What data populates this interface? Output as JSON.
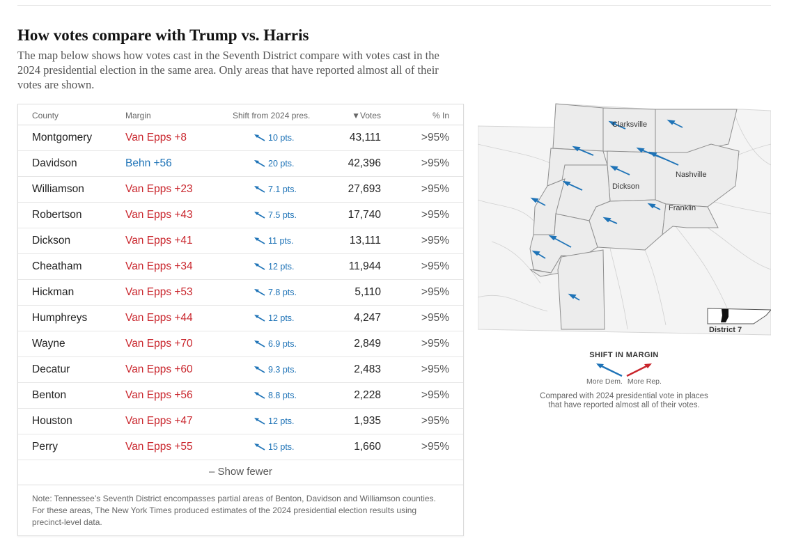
{
  "heading": "How votes compare with Trump vs. Harris",
  "intro": "The map below shows how votes cast in the Seventh District compare with votes cast in the 2024 presidential election in the same area. Only areas that have reported almost all of their votes are shown.",
  "table": {
    "headers": {
      "county": "County",
      "margin": "Margin",
      "shift": "Shift from 2024 pres.",
      "votes": "▼Votes",
      "pct_in": "% In"
    },
    "rows": [
      {
        "county": "Montgomery",
        "margin": "Van Epps +8",
        "party": "rep",
        "shift": "10 pts.",
        "votes": "43,111",
        "pct_in": ">95%"
      },
      {
        "county": "Davidson",
        "margin": "Behn +56",
        "party": "dem",
        "shift": "20 pts.",
        "votes": "42,396",
        "pct_in": ">95%"
      },
      {
        "county": "Williamson",
        "margin": "Van Epps +23",
        "party": "rep",
        "shift": "7.1 pts.",
        "votes": "27,693",
        "pct_in": ">95%"
      },
      {
        "county": "Robertson",
        "margin": "Van Epps +43",
        "party": "rep",
        "shift": "7.5 pts.",
        "votes": "17,740",
        "pct_in": ">95%"
      },
      {
        "county": "Dickson",
        "margin": "Van Epps +41",
        "party": "rep",
        "shift": "11 pts.",
        "votes": "13,111",
        "pct_in": ">95%"
      },
      {
        "county": "Cheatham",
        "margin": "Van Epps +34",
        "party": "rep",
        "shift": "12 pts.",
        "votes": "11,944",
        "pct_in": ">95%"
      },
      {
        "county": "Hickman",
        "margin": "Van Epps +53",
        "party": "rep",
        "shift": "7.8 pts.",
        "votes": "5,110",
        "pct_in": ">95%"
      },
      {
        "county": "Humphreys",
        "margin": "Van Epps +44",
        "party": "rep",
        "shift": "12 pts.",
        "votes": "4,247",
        "pct_in": ">95%"
      },
      {
        "county": "Wayne",
        "margin": "Van Epps +70",
        "party": "rep",
        "shift": "6.9 pts.",
        "votes": "2,849",
        "pct_in": ">95%"
      },
      {
        "county": "Decatur",
        "margin": "Van Epps +60",
        "party": "rep",
        "shift": "9.3 pts.",
        "votes": "2,483",
        "pct_in": ">95%"
      },
      {
        "county": "Benton",
        "margin": "Van Epps +56",
        "party": "rep",
        "shift": "8.8 pts.",
        "votes": "2,228",
        "pct_in": ">95%"
      },
      {
        "county": "Houston",
        "margin": "Van Epps +47",
        "party": "rep",
        "shift": "12 pts.",
        "votes": "1,935",
        "pct_in": ">95%"
      },
      {
        "county": "Perry",
        "margin": "Van Epps +55",
        "party": "rep",
        "shift": "15 pts.",
        "votes": "1,660",
        "pct_in": ">95%"
      }
    ],
    "toggle_label": "– Show fewer",
    "note": "Note: Tennessee’s Seventh District encompasses partial areas of Benton, Davidson and Williamson counties. For these areas, The New York Times produced estimates of the 2024 presidential election results using precinct-level data."
  },
  "map": {
    "city_labels": {
      "clarksville": "Clarksville",
      "nashville": "Nashville",
      "dickson": "Dickson",
      "franklin": "Franklin"
    },
    "inset_label": "District 7"
  },
  "legend": {
    "title": "SHIFT IN MARGIN",
    "dem_label": "More Dem.",
    "rep_label": "More Rep.",
    "description": "Compared with 2024 presidential vote in places that have reported almost all of their votes."
  },
  "colors": {
    "rep": "#c9252c",
    "dem": "#1e73b7"
  }
}
